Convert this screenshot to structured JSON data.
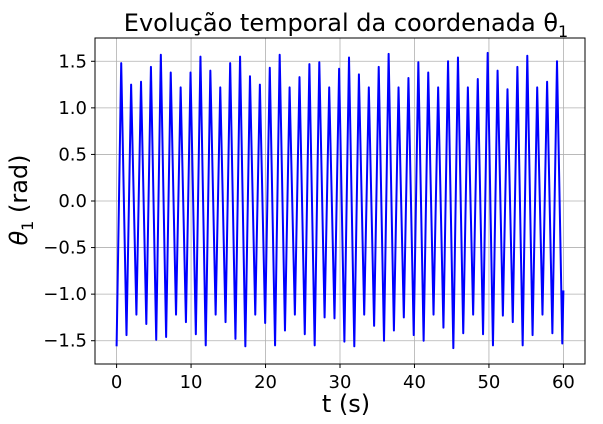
{
  "chart_data": {
    "type": "line",
    "title": "Evolução temporal da coordenada θ",
    "title_subscript": "1",
    "xlabel": "t (s)",
    "ylabel": "θ",
    "ylabel_subscript": "1",
    "ylabel_unit": "(rad)",
    "xlim": [
      -2.9,
      62.9
    ],
    "ylim": [
      -1.75,
      1.75
    ],
    "xticks": [
      0,
      10,
      20,
      30,
      40,
      50,
      60
    ],
    "yticks": [
      -1.5,
      -1.0,
      -0.5,
      0.0,
      0.5,
      1.0,
      1.5
    ],
    "ytick_labels": [
      "−1.5",
      "−1.0",
      "−0.5",
      "0.0",
      "0.5",
      "1.0",
      "1.5"
    ],
    "grid": true,
    "series": [
      {
        "color": "#0000ff",
        "x": [
          0.0,
          0.62,
          1.33,
          1.95,
          2.66,
          3.28,
          3.99,
          4.61,
          5.32,
          5.94,
          6.65,
          7.27,
          7.98,
          8.6,
          9.31,
          9.93,
          10.64,
          11.26,
          11.97,
          12.59,
          13.3,
          13.92,
          14.63,
          15.25,
          15.96,
          16.58,
          17.29,
          17.91,
          18.62,
          19.24,
          19.95,
          20.57,
          21.28,
          21.9,
          22.61,
          23.23,
          23.94,
          24.56,
          25.27,
          25.89,
          26.6,
          27.22,
          27.93,
          28.55,
          29.26,
          29.88,
          30.59,
          31.21,
          31.92,
          32.54,
          33.25,
          33.87,
          34.58,
          35.2,
          35.91,
          36.53,
          37.24,
          37.86,
          38.57,
          39.19,
          39.9,
          40.52,
          41.23,
          41.85,
          42.56,
          43.18,
          43.89,
          44.51,
          45.22,
          45.84,
          46.55,
          47.17,
          47.88,
          48.5,
          49.21,
          49.83,
          50.54,
          51.16,
          51.87,
          52.49,
          53.2,
          53.82,
          54.53,
          55.15,
          55.86,
          56.48,
          57.19,
          57.81,
          58.52,
          59.14,
          59.85,
          60.0
        ],
        "y": [
          -1.56,
          1.48,
          -1.44,
          1.25,
          -1.22,
          1.28,
          -1.32,
          1.44,
          -1.49,
          1.57,
          -1.46,
          1.38,
          -1.22,
          1.22,
          -1.3,
          1.38,
          -1.43,
          1.55,
          -1.55,
          1.4,
          -1.22,
          1.22,
          -1.3,
          1.48,
          -1.48,
          1.55,
          -1.56,
          1.34,
          -1.22,
          1.25,
          -1.31,
          1.43,
          -1.55,
          1.57,
          -1.39,
          1.22,
          -1.22,
          1.33,
          -1.43,
          1.47,
          -1.55,
          1.49,
          -1.25,
          1.22,
          -1.26,
          1.42,
          -1.51,
          1.54,
          -1.56,
          1.36,
          -1.22,
          1.22,
          -1.34,
          1.44,
          -1.5,
          1.58,
          -1.39,
          1.22,
          -1.25,
          1.32,
          -1.44,
          1.49,
          -1.5,
          1.38,
          -1.22,
          1.22,
          -1.36,
          1.5,
          -1.58,
          1.54,
          -1.42,
          1.22,
          -1.22,
          1.31,
          -1.43,
          1.59,
          -1.55,
          1.4,
          -1.23,
          1.2,
          -1.3,
          1.44,
          -1.55,
          1.56,
          -1.44,
          1.22,
          -1.22,
          1.28,
          -1.42,
          1.5,
          -1.53,
          -0.96
        ]
      }
    ]
  }
}
